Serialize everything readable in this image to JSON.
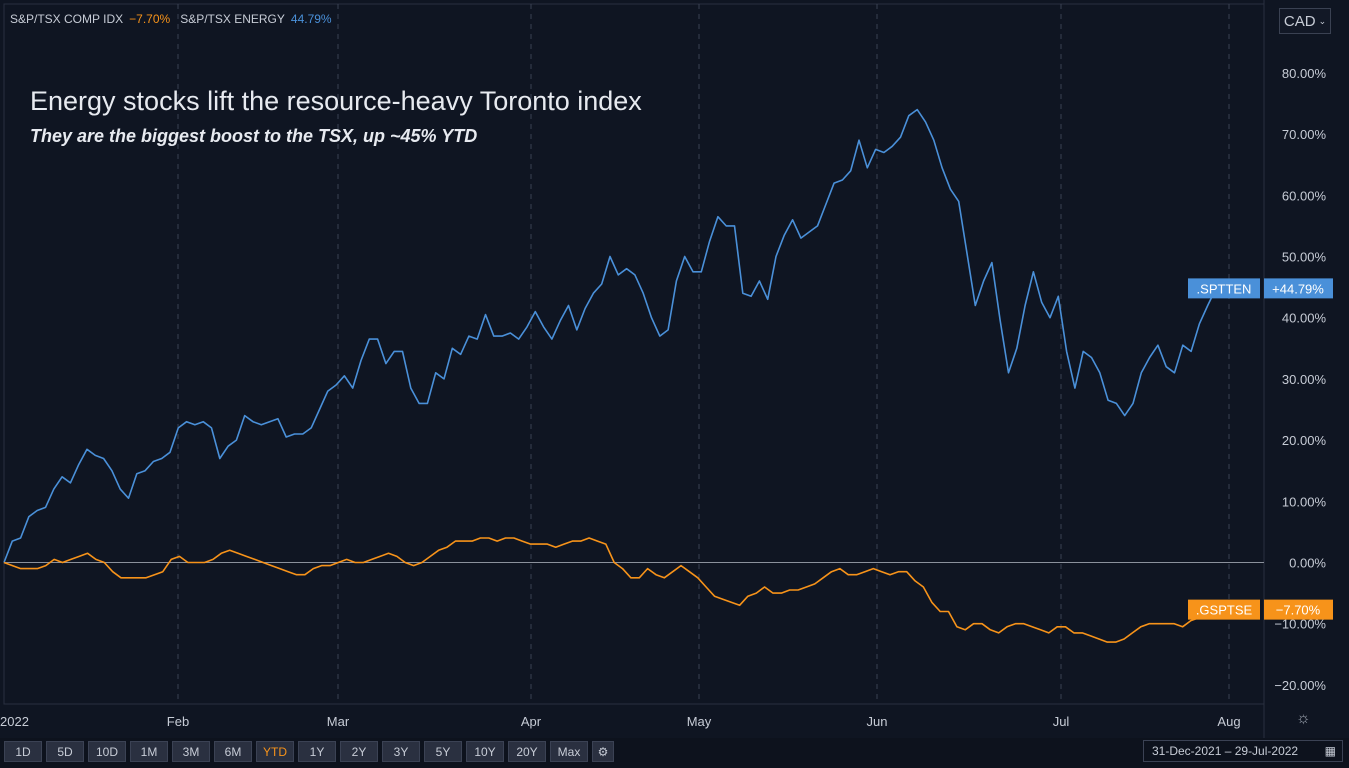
{
  "legend": [
    {
      "name": "S&P/TSX COMP IDX",
      "value": "−7.70%",
      "color": "#f7931a"
    },
    {
      "name": "S&P/TSX ENERGY",
      "value": "44.79%",
      "color": "#4a90d9"
    }
  ],
  "currency": "CAD",
  "title": "Energy stocks lift the resource-heavy Toronto index",
  "subtitle": "They are the biggest boost to the TSX, up ~45% YTD",
  "range_buttons": [
    "1D",
    "5D",
    "10D",
    "1M",
    "3M",
    "6M",
    "YTD",
    "1Y",
    "2Y",
    "3Y",
    "5Y",
    "10Y",
    "20Y",
    "Max"
  ],
  "active_range": "YTD",
  "date_range": "31-Dec-2021  –  29-Jul-2022",
  "chart_data": {
    "type": "line",
    "x_tick_labels": [
      "2022",
      "Feb",
      "Mar",
      "Apr",
      "May",
      "Jun",
      "Jul",
      "Aug"
    ],
    "y_tick_labels": [
      "80.00%",
      "70.00%",
      "60.00%",
      "50.00%",
      "40.00%",
      "30.00%",
      "20.00%",
      "10.00%",
      "0.00%",
      "−10.00%",
      "−20.00%"
    ],
    "ylim": [
      -22,
      85
    ],
    "series": [
      {
        "name": ".SPTTEN",
        "color": "#4a90d9",
        "end_label": "+44.79%",
        "values": [
          0,
          3.5,
          4,
          7.5,
          8.5,
          9,
          12,
          14,
          13,
          16,
          18.5,
          17.5,
          17,
          15,
          12,
          10.5,
          14.5,
          15,
          16.5,
          17,
          18,
          22,
          23,
          22.5,
          23,
          22,
          17,
          19,
          20,
          24,
          23,
          22.5,
          23,
          23.5,
          20.5,
          21,
          21,
          22,
          25,
          28,
          29,
          30.5,
          28.5,
          33,
          36.5,
          36.5,
          32.5,
          34.5,
          34.5,
          28.5,
          26,
          26,
          31,
          30,
          35,
          34,
          37,
          36.5,
          40.5,
          37,
          37,
          37.5,
          36.5,
          38.5,
          41,
          38.5,
          36.5,
          39.5,
          42,
          38,
          41.5,
          44,
          45.5,
          50,
          47,
          48,
          47,
          44,
          40,
          37,
          38,
          46,
          50,
          47.5,
          47.5,
          52.5,
          56.5,
          55,
          55,
          44,
          43.5,
          46,
          43,
          50,
          53.5,
          56,
          53,
          54,
          55,
          58.5,
          62,
          62.5,
          64,
          69,
          64.5,
          67.5,
          67,
          68,
          69.5,
          73,
          74,
          72,
          69,
          64.5,
          61,
          59,
          50.5,
          42,
          46,
          49,
          39.5,
          31,
          35,
          42,
          47.5,
          42.5,
          40,
          43.5,
          34.5,
          28.5,
          34.5,
          33.5,
          31,
          26.5,
          26,
          24,
          26,
          31,
          33.5,
          35.5,
          32,
          31,
          35.5,
          34.5,
          39,
          42,
          44.79
        ]
      },
      {
        "name": ".GSPTSE",
        "color": "#f7931a",
        "end_label": "−7.70%",
        "values": [
          0,
          -0.5,
          -1,
          -1,
          -1,
          -0.5,
          0.5,
          0,
          0.5,
          1,
          1.5,
          0.5,
          0,
          -1.5,
          -2.5,
          -2.5,
          -2.5,
          -2.5,
          -2,
          -1.5,
          0.5,
          1,
          0,
          0,
          0,
          0.5,
          1.5,
          2,
          1.5,
          1,
          0.5,
          0,
          -0.5,
          -1,
          -1.5,
          -2,
          -2,
          -1,
          -0.5,
          -0.5,
          0,
          0.5,
          0,
          0,
          0.5,
          1,
          1.5,
          1,
          0,
          -0.5,
          0,
          1,
          2,
          2.5,
          3.5,
          3.5,
          3.5,
          4,
          4,
          3.5,
          4,
          4,
          3.5,
          3,
          3,
          3,
          2.5,
          3,
          3.5,
          3.5,
          4,
          3.5,
          3,
          0,
          -1,
          -2.5,
          -2.5,
          -1,
          -2,
          -2.5,
          -1.5,
          -0.5,
          -1.5,
          -2.5,
          -4,
          -5.5,
          -6,
          -6.5,
          -7,
          -5.5,
          -5,
          -4,
          -5,
          -5,
          -4.5,
          -4.5,
          -4,
          -3.5,
          -2.5,
          -1.5,
          -1,
          -2,
          -2,
          -1.5,
          -1,
          -1.5,
          -2,
          -1.5,
          -1.5,
          -3,
          -4,
          -6.5,
          -8,
          -8,
          -10.5,
          -11,
          -10,
          -10,
          -11,
          -11.5,
          -10.5,
          -10,
          -10,
          -10.5,
          -11,
          -11.5,
          -10.5,
          -10.5,
          -11.5,
          -11.5,
          -12,
          -12.5,
          -13,
          -13,
          -12.5,
          -11.5,
          -10.5,
          -10,
          -10,
          -10,
          -10,
          -10.5,
          -9.5,
          -9,
          -8,
          -7.7
        ]
      }
    ]
  }
}
